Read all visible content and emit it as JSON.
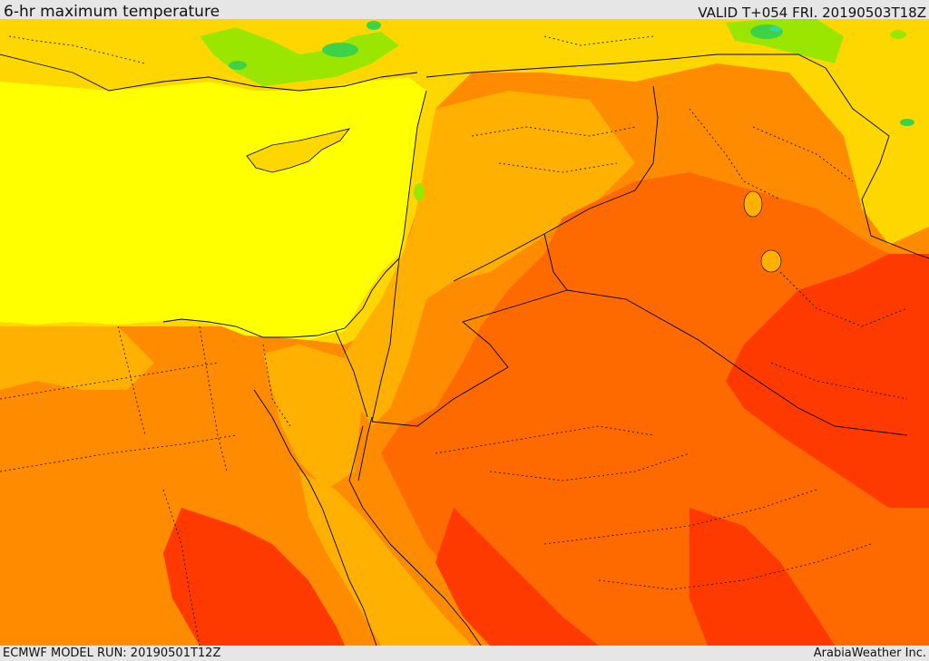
{
  "header": {
    "title": "6-hr maximum temperature",
    "valid": "VALID T+054 FRI. 20190503T18Z"
  },
  "footer": {
    "model_run": "ECMWF MODEL RUN: 20190501T12Z",
    "credit": "ArabiaWeather Inc."
  },
  "colors": {
    "bright_yellow": "#ffff00",
    "yellow": "#ffd700",
    "light_orange": "#ffb000",
    "orange": "#ff8c00",
    "dark_orange": "#ff6a00",
    "red": "#ff3a00",
    "light_green": "#9be600",
    "green": "#3cd24a",
    "cyan": "#30d8a8"
  }
}
